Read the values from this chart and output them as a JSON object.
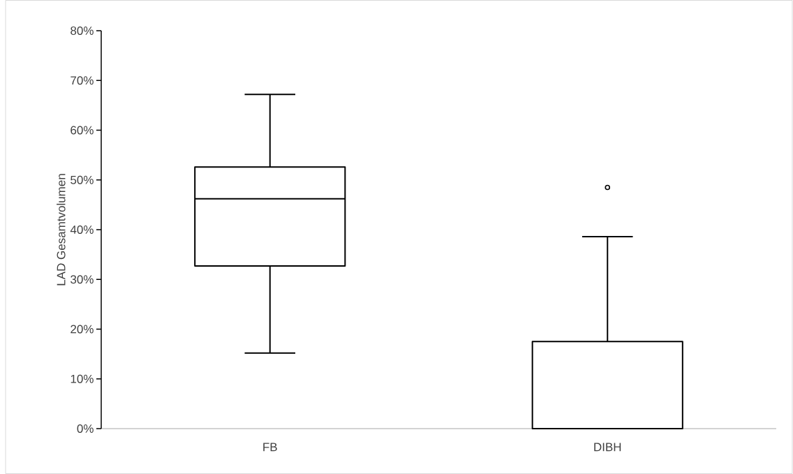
{
  "chart_data": {
    "type": "box",
    "ylabel": "LAD Gesamtvolumen",
    "categories": [
      "FB",
      "DIBH"
    ],
    "series": [
      {
        "color": "#000000",
        "boxes": [
          {
            "low": 15.2,
            "q1": 32.7,
            "median": 46.2,
            "q3": 52.6,
            "high": 67.2
          },
          {
            "low": 0,
            "q1": 0,
            "median": 0,
            "q3": 17.5,
            "high": 38.6,
            "outliers": [
              48.5
            ]
          }
        ]
      }
    ],
    "ylim": [
      0,
      80
    ],
    "yticks": [
      {
        "value": 0,
        "label": "0%"
      },
      {
        "value": 10,
        "label": "10%"
      },
      {
        "value": 20,
        "label": "20%"
      },
      {
        "value": 30,
        "label": "30%"
      },
      {
        "value": 40,
        "label": "40%"
      },
      {
        "value": 50,
        "label": "50%"
      },
      {
        "value": 60,
        "label": "60%"
      },
      {
        "value": 70,
        "label": "70%"
      },
      {
        "value": 80,
        "label": "80%"
      }
    ]
  }
}
